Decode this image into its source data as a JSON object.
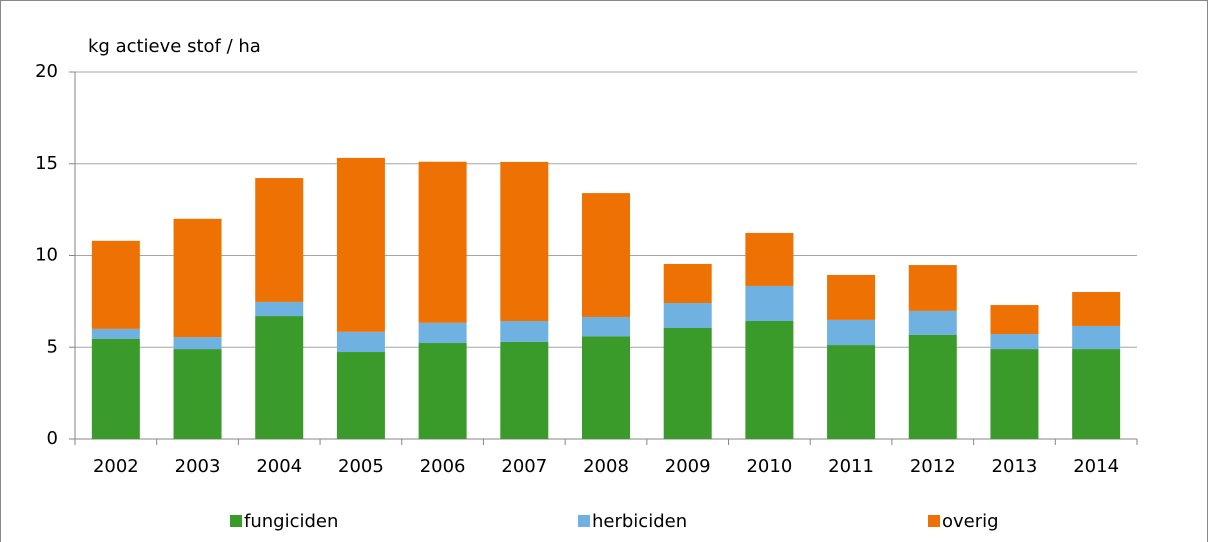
{
  "chart_data": {
    "type": "stacked_bar",
    "y_label": "kg actieve stof / ha",
    "categories": [
      "2002",
      "2003",
      "2004",
      "2005",
      "2006",
      "2007",
      "2008",
      "2009",
      "2010",
      "2011",
      "2012",
      "2013",
      "2014"
    ],
    "series": [
      {
        "name": "fungiciden",
        "color": "#3a9a2a",
        "values": [
          5.45,
          4.9,
          6.7,
          4.74,
          5.23,
          5.29,
          5.6,
          6.05,
          6.43,
          5.12,
          5.67,
          4.9,
          4.9
        ]
      },
      {
        "name": "herbiciden",
        "color": "#6fb1e0",
        "values": [
          0.55,
          0.65,
          0.77,
          1.1,
          1.1,
          1.14,
          1.05,
          1.36,
          1.91,
          1.37,
          1.31,
          0.82,
          1.26
        ]
      },
      {
        "name": "overig",
        "color": "#ee7203",
        "values": [
          4.8,
          6.45,
          6.75,
          9.48,
          8.78,
          8.67,
          6.75,
          2.13,
          2.89,
          2.45,
          2.5,
          1.58,
          1.85
        ]
      }
    ],
    "ylim": [
      0,
      20
    ],
    "yticks": [
      0,
      5,
      10,
      15,
      20
    ],
    "grid": true,
    "legend": "bottom"
  }
}
